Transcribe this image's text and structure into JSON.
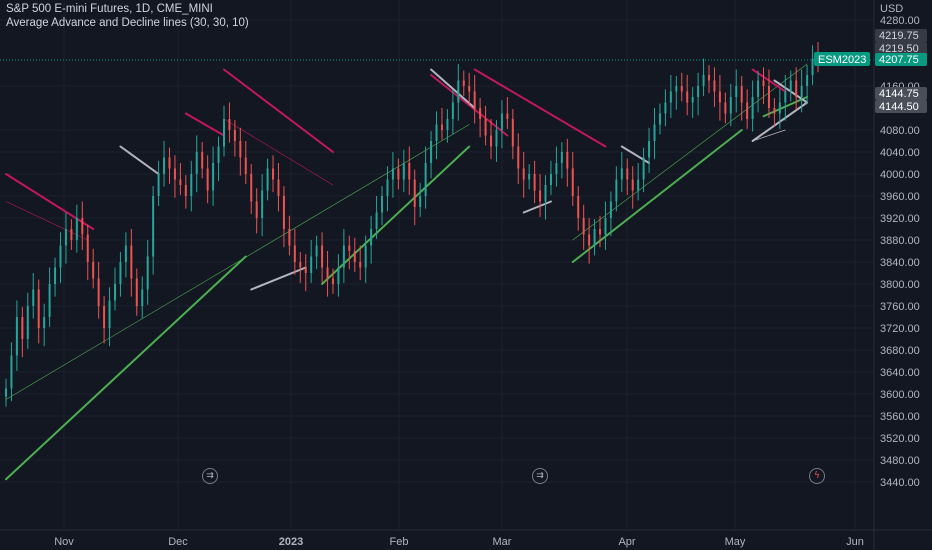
{
  "header": {
    "title": "S&P 500 E-mini Futures, 1D, CME_MINI",
    "indicator": "Average Advance and Decline lines (30, 30, 10)"
  },
  "currency": "USD",
  "price_tags": {
    "high": "4219.75",
    "mid": "4219.50",
    "symbol": "ESM2023",
    "last": "4207.75",
    "low1": "4144.75",
    "low2": "4144.50"
  },
  "colors": {
    "background": "#131722",
    "up": "#26a69a",
    "down": "#ef5350",
    "up_line": "#4caf50",
    "down_line": "#c2185b",
    "gray_line": "#b2b5be",
    "symbol_tag": "#089981"
  },
  "events": [
    {
      "icon": "split-arrows-icon",
      "glyph": "⇉"
    },
    {
      "icon": "split-arrows-icon",
      "glyph": "⇉"
    },
    {
      "icon": "lightning-icon",
      "glyph": "ϟ"
    }
  ],
  "chart_data": {
    "type": "candlestick",
    "title": "S&P 500 E-mini Futures, 1D, CME_MINI",
    "ylabel": "USD",
    "ylim": [
      3420,
      4290
    ],
    "y_ticks": [
      4280,
      4160,
      4080,
      4040,
      4000,
      3960,
      3920,
      3880,
      3840,
      3800,
      3760,
      3720,
      3680,
      3640,
      3600,
      3560,
      3520,
      3480,
      3440
    ],
    "x_ticks": [
      "Nov",
      "Dec",
      "2023",
      "Feb",
      "Mar",
      "Apr",
      "May",
      "Jun"
    ],
    "series": [
      {
        "name": "ESM2023",
        "close": [
          3610,
          3670,
          3740,
          3700,
          3760,
          3790,
          3720,
          3740,
          3800,
          3830,
          3870,
          3900,
          3880,
          3920,
          3890,
          3840,
          3810,
          3760,
          3720,
          3770,
          3800,
          3840,
          3870,
          3810,
          3760,
          3790,
          3850,
          3960,
          4000,
          4030,
          4010,
          3990,
          3980,
          3960,
          4000,
          4040,
          4010,
          3970,
          4020,
          4050,
          4100,
          4080,
          4060,
          4030,
          4000,
          3950,
          3920,
          3970,
          4010,
          3990,
          3960,
          3900,
          3870,
          3840,
          3830,
          3820,
          3850,
          3870,
          3830,
          3810,
          3800,
          3830,
          3870,
          3860,
          3840,
          3830,
          3870,
          3900,
          3930,
          3960,
          3990,
          4010,
          3990,
          4020,
          3990,
          3940,
          3960,
          4020,
          4060,
          4090,
          4080,
          4100,
          4130,
          4170,
          4160,
          4150,
          4120,
          4100,
          4070,
          4050,
          4080,
          4110,
          4100,
          4050,
          4010,
          3990,
          4000,
          3970,
          3950,
          3980,
          4000,
          4020,
          4040,
          4010,
          3960,
          3920,
          3890,
          3870,
          3900,
          3890,
          3920,
          3950,
          3990,
          4010,
          3990,
          3970,
          3990,
          4030,
          4060,
          4090,
          4110,
          4130,
          4150,
          4160,
          4150,
          4130,
          4140,
          4160,
          4180,
          4170,
          4150,
          4130,
          4110,
          4140,
          4160,
          4130,
          4100,
          4140,
          4170,
          4160,
          4120,
          4110,
          4130,
          4150,
          4170,
          4140,
          4160,
          4180,
          4210,
          4208
        ]
      },
      {
        "name": "Average Advance and Decline lines",
        "lines": [
          "advance",
          "decline"
        ]
      }
    ]
  }
}
